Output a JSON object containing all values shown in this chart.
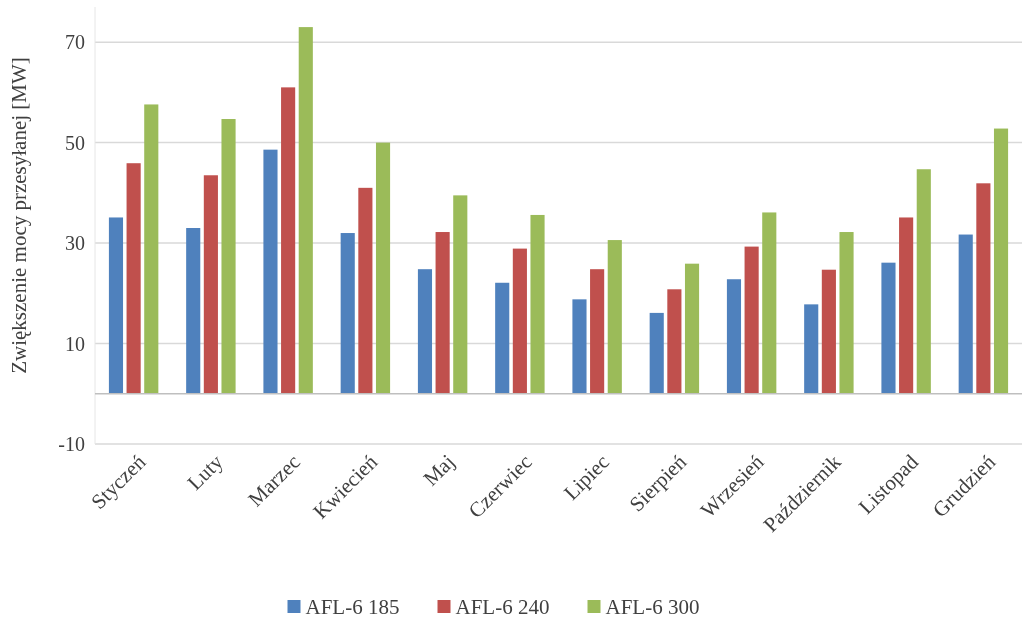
{
  "chart_data": {
    "type": "bar",
    "ylabel": "Zwiększenie mocy przesyłanej  [MW]",
    "categories": [
      "Styczeń",
      "Luty",
      "Marzec",
      "Kwiecień",
      "Maj",
      "Czerwiec",
      "Lipiec",
      "Sierpień",
      "Wrzesień",
      "Październik",
      "Listopad",
      "Grudzień"
    ],
    "series": [
      {
        "name": "AFL-6 185",
        "color": "#4f81bd",
        "values": [
          35.1,
          33.0,
          48.6,
          32.0,
          24.8,
          22.1,
          18.8,
          16.1,
          22.8,
          17.8,
          26.1,
          31.7
        ]
      },
      {
        "name": "AFL-6 240",
        "color": "#c0504d",
        "values": [
          45.9,
          43.5,
          61.0,
          41.0,
          32.2,
          28.9,
          24.8,
          20.8,
          29.3,
          24.7,
          35.1,
          41.9
        ]
      },
      {
        "name": "AFL-6 300",
        "color": "#9bbb59",
        "values": [
          57.6,
          54.7,
          73.0,
          50.0,
          39.5,
          35.6,
          30.6,
          25.9,
          36.1,
          32.2,
          44.7,
          52.8
        ]
      }
    ],
    "ylim": [
      -10,
      77
    ],
    "yticks": [
      -10,
      10,
      30,
      50,
      70
    ],
    "grid": "y",
    "legend": "bottom"
  }
}
